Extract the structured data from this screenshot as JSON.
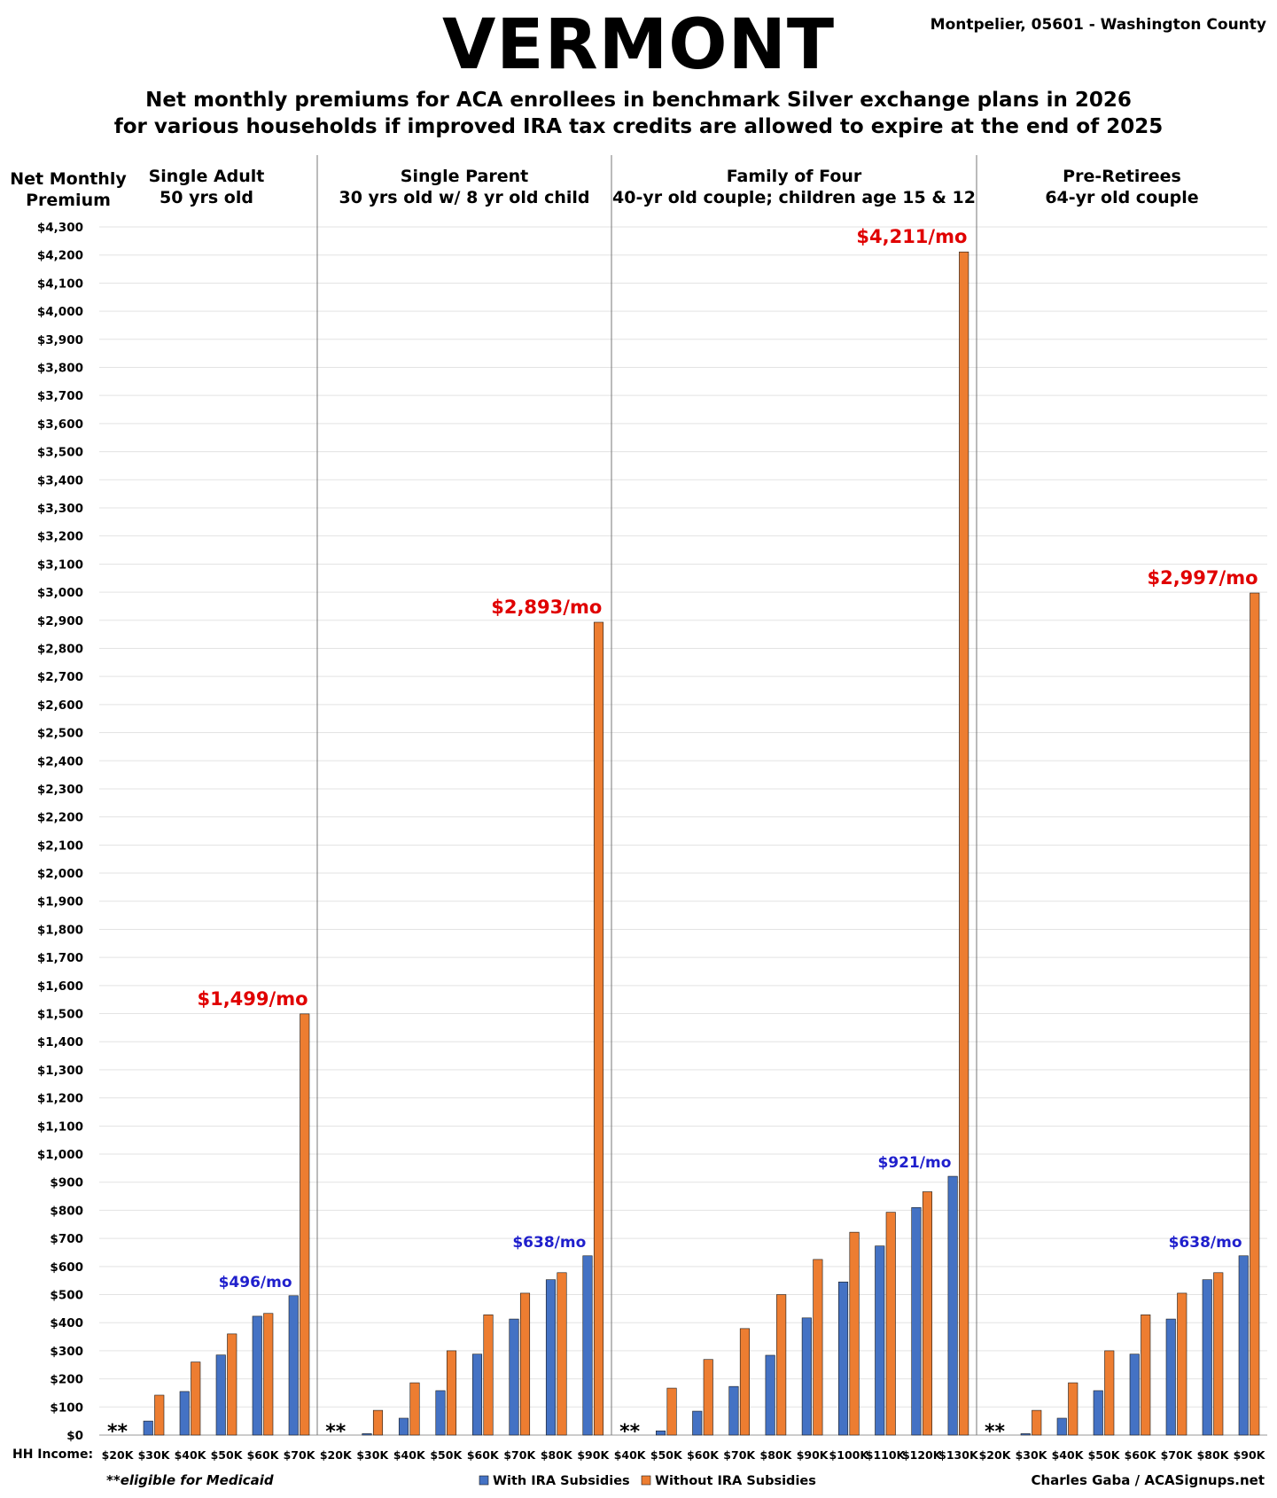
{
  "header": {
    "title": "VERMONT",
    "location": "Montpelier, 05601 - Washington County",
    "subtitle_line1": "Net monthly premiums for ACA enrollees in benchmark Silver exchange plans in 2026",
    "subtitle_line2": "for various households if improved IRA tax credits are allowed to expire at the end of 2025"
  },
  "colors": {
    "with_ira": "#4472C4",
    "without_ira": "#ED7D31",
    "red_label": "#E00000",
    "blue_label": "#1F1FCC"
  },
  "chart_data": {
    "type": "bar",
    "title": "Net monthly premiums for ACA enrollees in benchmark Silver exchange plans in 2026",
    "ylabel": "Net Monthly Premium",
    "xlabel": "HH Income:",
    "ylim": [
      0,
      4300
    ],
    "ytick_step": 100,
    "grid": true,
    "legend": [
      "With IRA Subsidies",
      "Without IRA Subsidies"
    ],
    "legend_position": "bottom-center",
    "footnote": "**eligible for Medicaid",
    "medicaid_marker": "**",
    "credit": "Charles Gaba / ACASignups.net",
    "panels": [
      {
        "title_line1": "Single Adult",
        "title_line2": "50 yrs old",
        "categories": [
          "$20K",
          "$30K",
          "$40K",
          "$50K",
          "$60K",
          "$70K"
        ],
        "series": [
          {
            "name": "With IRA Subsidies",
            "values": [
              0,
              50,
              155,
              285,
              423,
              496
            ]
          },
          {
            "name": "Without IRA Subsidies",
            "values": [
              0,
              142,
              260,
              360,
              433,
              1499
            ]
          }
        ],
        "medicaid_first": true,
        "annotations": {
          "without_label": "$1,499/mo",
          "with_label": "$496/mo"
        }
      },
      {
        "title_line1": "Single Parent",
        "title_line2": "30 yrs old w/ 8 yr old child",
        "categories": [
          "$20K",
          "$30K",
          "$40K",
          "$50K",
          "$60K",
          "$70K",
          "$80K",
          "$90K"
        ],
        "series": [
          {
            "name": "With IRA Subsidies",
            "values": [
              0,
              5,
              60,
              158,
              288,
              413,
              553,
              638
            ]
          },
          {
            "name": "Without IRA Subsidies",
            "values": [
              0,
              88,
              186,
              300,
              428,
              505,
              578,
              2893
            ]
          }
        ],
        "medicaid_first": true,
        "annotations": {
          "without_label": "$2,893/mo",
          "with_label": "$638/mo"
        }
      },
      {
        "title_line1": "Family of Four",
        "title_line2": "40-yr old couple; children age 15 & 12",
        "categories": [
          "$40K",
          "$50K",
          "$60K",
          "$70K",
          "$80K",
          "$90K",
          "$100K",
          "$110K",
          "$120K",
          "$130K"
        ],
        "series": [
          {
            "name": "With IRA Subsidies",
            "values": [
              0,
              15,
              85,
              173,
              284,
              417,
              545,
              673,
              810,
              921
            ]
          },
          {
            "name": "Without IRA Subsidies",
            "values": [
              0,
              167,
              269,
              379,
              500,
              625,
              722,
              793,
              866,
              4211
            ]
          }
        ],
        "medicaid_first": true,
        "annotations": {
          "without_label": "$4,211/mo",
          "with_label": "$921/mo"
        }
      },
      {
        "title_line1": "Pre-Retirees",
        "title_line2": "64-yr old couple",
        "categories": [
          "$20K",
          "$30K",
          "$40K",
          "$50K",
          "$60K",
          "$70K",
          "$80K",
          "$90K"
        ],
        "series": [
          {
            "name": "With IRA Subsidies",
            "values": [
              0,
              5,
              60,
              158,
              288,
              413,
              553,
              638
            ]
          },
          {
            "name": "Without IRA Subsidies",
            "values": [
              0,
              88,
              186,
              300,
              428,
              505,
              578,
              2997
            ]
          }
        ],
        "medicaid_first": true,
        "annotations": {
          "without_label": "$2,997/mo",
          "with_label": "$638/mo"
        }
      }
    ]
  }
}
